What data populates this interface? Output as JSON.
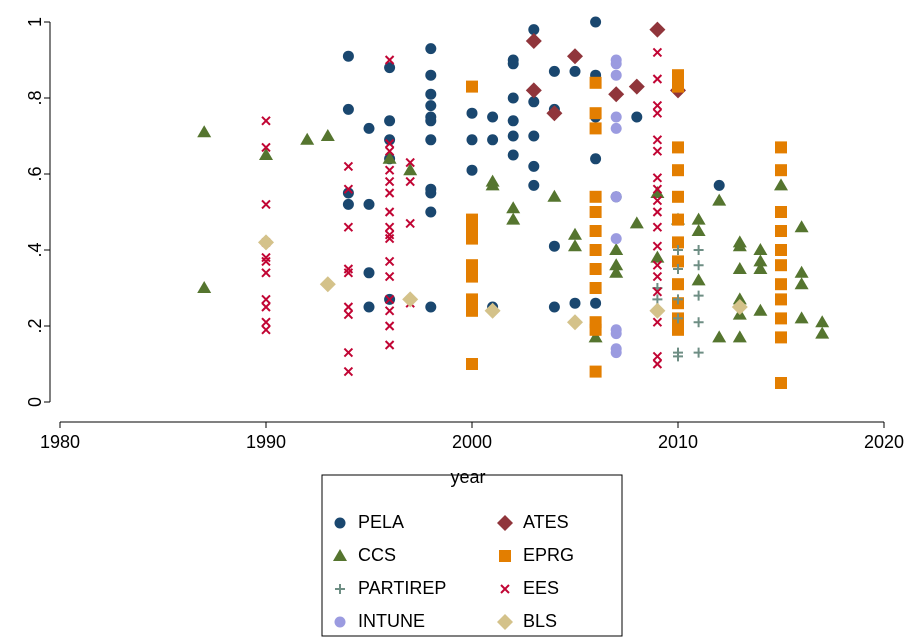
{
  "chart_data": {
    "type": "scatter",
    "xlabel": "year",
    "xlim": [
      1980,
      2020
    ],
    "xticks": [
      1980,
      1990,
      2000,
      2010,
      2020
    ],
    "ylim": [
      0,
      1
    ],
    "yticks": [
      0,
      {
        "value": 0.2,
        "label": ".2"
      },
      {
        "value": 0.4,
        "label": ".4"
      },
      {
        "value": 0.6,
        "label": ".6"
      },
      {
        "value": 0.8,
        "label": ".8"
      },
      1
    ],
    "grid": false,
    "legend": "bottom",
    "series": [
      {
        "name": "PELA",
        "color": "#1a476f",
        "marker": "circle",
        "x": [
          1994,
          1994,
          1994,
          1994,
          1995,
          1995,
          1995,
          1995,
          1996,
          1996,
          1996,
          1996,
          1996,
          1998,
          1998,
          1998,
          1998,
          1998,
          1998,
          1998,
          1998,
          1998,
          1998,
          1998,
          2000,
          2000,
          2000,
          2001,
          2001,
          2001,
          2002,
          2002,
          2002,
          2002,
          2002,
          2002,
          2003,
          2003,
          2003,
          2003,
          2003,
          2004,
          2004,
          2004,
          2004,
          2005,
          2005,
          2006,
          2006,
          2006,
          2006,
          2006,
          2007,
          2008,
          2012
        ],
        "values": [
          0.91,
          0.77,
          0.55,
          0.52,
          0.72,
          0.52,
          0.34,
          0.25,
          0.88,
          0.74,
          0.69,
          0.64,
          0.27,
          0.93,
          0.86,
          0.81,
          0.78,
          0.75,
          0.74,
          0.69,
          0.56,
          0.55,
          0.5,
          0.25,
          0.76,
          0.69,
          0.61,
          0.75,
          0.69,
          0.25,
          0.9,
          0.89,
          0.8,
          0.74,
          0.7,
          0.65,
          0.98,
          0.79,
          0.7,
          0.62,
          0.57,
          0.87,
          0.77,
          0.41,
          0.25,
          0.87,
          0.26,
          1.0,
          0.86,
          0.75,
          0.64,
          0.26,
          0.54,
          0.75,
          0.57
        ]
      },
      {
        "name": "ATES",
        "color": "#90353b",
        "marker": "diamond",
        "x": [
          2003,
          2003,
          2004,
          2005,
          2007,
          2008,
          2009,
          2010
        ],
        "values": [
          0.95,
          0.82,
          0.76,
          0.91,
          0.81,
          0.83,
          0.98,
          0.82
        ]
      },
      {
        "name": "CCS",
        "color": "#55752f",
        "marker": "triangle",
        "x": [
          1987,
          1987,
          1990,
          1992,
          1993,
          1996,
          1997,
          2001,
          2001,
          2002,
          2002,
          2004,
          2005,
          2005,
          2006,
          2007,
          2007,
          2007,
          2008,
          2009,
          2009,
          2010,
          2011,
          2011,
          2011,
          2012,
          2012,
          2013,
          2013,
          2013,
          2013,
          2013,
          2013,
          2014,
          2014,
          2014,
          2014,
          2015,
          2016,
          2016,
          2016,
          2016,
          2017,
          2017
        ],
        "values": [
          0.71,
          0.3,
          0.65,
          0.69,
          0.7,
          0.64,
          0.61,
          0.58,
          0.57,
          0.51,
          0.48,
          0.54,
          0.44,
          0.41,
          0.17,
          0.4,
          0.36,
          0.34,
          0.47,
          0.55,
          0.38,
          0.48,
          0.48,
          0.45,
          0.32,
          0.53,
          0.17,
          0.42,
          0.41,
          0.35,
          0.27,
          0.23,
          0.17,
          0.4,
          0.37,
          0.35,
          0.24,
          0.57,
          0.46,
          0.34,
          0.31,
          0.22,
          0.21,
          0.18
        ]
      },
      {
        "name": "EPRG",
        "color": "#e37e00",
        "marker": "square",
        "x": [
          2000,
          2000,
          2000,
          2000,
          2000,
          2000,
          2000,
          2000,
          2000,
          2000,
          2006,
          2006,
          2006,
          2006,
          2006,
          2006,
          2006,
          2006,
          2006,
          2006,
          2006,
          2006,
          2010,
          2010,
          2010,
          2010,
          2010,
          2010,
          2010,
          2010,
          2010,
          2010,
          2010,
          2010,
          2015,
          2015,
          2015,
          2015,
          2015,
          2015,
          2015,
          2015,
          2015,
          2015,
          2015
        ],
        "values": [
          0.83,
          0.48,
          0.46,
          0.43,
          0.36,
          0.33,
          0.27,
          0.26,
          0.24,
          0.1,
          0.84,
          0.76,
          0.72,
          0.54,
          0.5,
          0.45,
          0.4,
          0.35,
          0.3,
          0.21,
          0.19,
          0.08,
          0.86,
          0.83,
          0.67,
          0.61,
          0.54,
          0.48,
          0.42,
          0.37,
          0.31,
          0.26,
          0.22,
          0.19,
          0.67,
          0.61,
          0.5,
          0.45,
          0.4,
          0.36,
          0.31,
          0.27,
          0.22,
          0.17,
          0.05
        ]
      },
      {
        "name": "PARTIREP",
        "color": "#6e8e84",
        "marker": "plus",
        "x": [
          2009,
          2009,
          2010,
          2010,
          2010,
          2010,
          2010,
          2010,
          2011,
          2011,
          2011,
          2011,
          2011
        ],
        "values": [
          0.3,
          0.27,
          0.4,
          0.35,
          0.27,
          0.22,
          0.13,
          0.12,
          0.4,
          0.36,
          0.28,
          0.21,
          0.13
        ]
      },
      {
        "name": "EES",
        "color": "#c10534",
        "marker": "x",
        "x": [
          1990,
          1990,
          1990,
          1990,
          1990,
          1990,
          1990,
          1990,
          1990,
          1990,
          1990,
          1994,
          1994,
          1994,
          1994,
          1994,
          1994,
          1994,
          1994,
          1994,
          1996,
          1996,
          1996,
          1996,
          1996,
          1996,
          1996,
          1996,
          1996,
          1996,
          1996,
          1996,
          1996,
          1996,
          1996,
          1996,
          1997,
          1997,
          1997,
          1997,
          2009,
          2009,
          2009,
          2009,
          2009,
          2009,
          2009,
          2009,
          2009,
          2009,
          2009,
          2009,
          2009,
          2009,
          2009,
          2009,
          2009,
          2009
        ],
        "values": [
          0.74,
          0.67,
          0.52,
          0.42,
          0.38,
          0.37,
          0.34,
          0.27,
          0.25,
          0.21,
          0.19,
          0.62,
          0.56,
          0.46,
          0.35,
          0.34,
          0.25,
          0.23,
          0.13,
          0.08,
          0.9,
          0.68,
          0.66,
          0.61,
          0.58,
          0.55,
          0.5,
          0.46,
          0.44,
          0.43,
          0.37,
          0.33,
          0.27,
          0.24,
          0.2,
          0.15,
          0.63,
          0.58,
          0.47,
          0.26,
          0.92,
          0.85,
          0.78,
          0.76,
          0.69,
          0.66,
          0.59,
          0.56,
          0.53,
          0.5,
          0.46,
          0.41,
          0.36,
          0.33,
          0.29,
          0.21,
          0.12,
          0.1
        ]
      },
      {
        "name": "INTUNE",
        "color": "#9b9be0",
        "marker": "circle",
        "x": [
          2007,
          2007,
          2007,
          2007,
          2007,
          2007,
          2007,
          2007,
          2007,
          2007,
          2007
        ],
        "values": [
          0.9,
          0.89,
          0.86,
          0.75,
          0.72,
          0.54,
          0.43,
          0.19,
          0.18,
          0.14,
          0.13
        ]
      },
      {
        "name": "BLS",
        "color": "#d4c28a",
        "marker": "diamond",
        "x": [
          1990,
          1993,
          1997,
          2001,
          2005,
          2009,
          2013
        ],
        "values": [
          0.42,
          0.31,
          0.27,
          0.24,
          0.21,
          0.24,
          0.25
        ]
      }
    ]
  }
}
